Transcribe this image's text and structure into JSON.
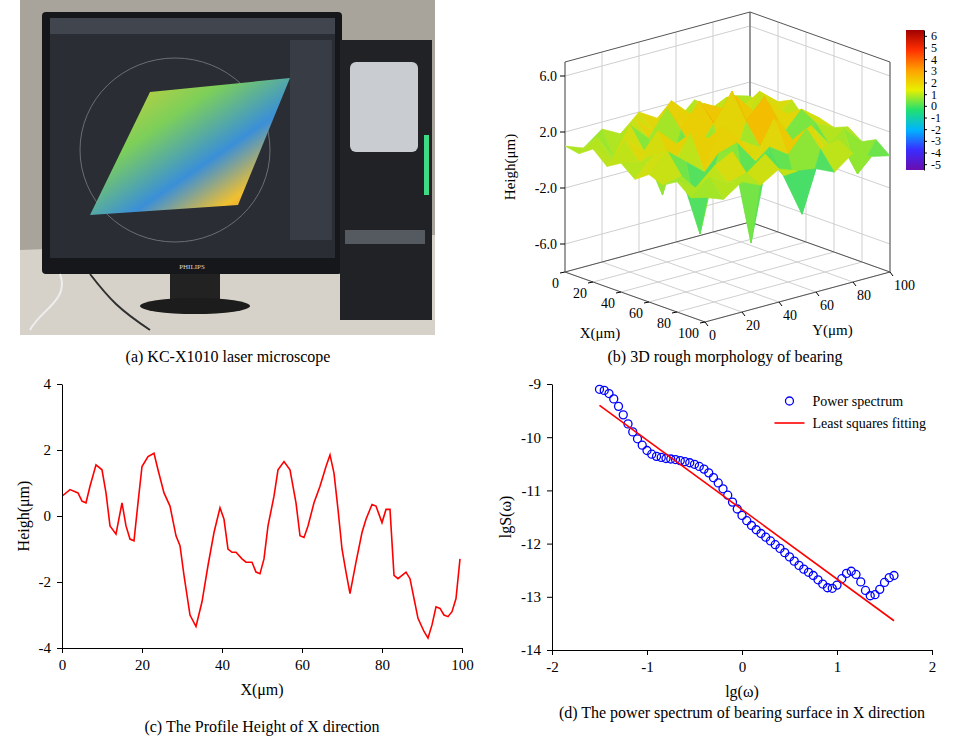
{
  "chart_data": [
    {
      "type": "image",
      "caption": "(a) KC-X1010 laser microscope",
      "monitor_label": "PHILIPS"
    },
    {
      "type": "surface3d",
      "caption": "(b) 3D rough morphology of bearing",
      "x_label": "X(μm)",
      "y_label": "Y(μm)",
      "z_label": "Heigh(μm)",
      "x": [
        0,
        10,
        20,
        30,
        40,
        50,
        60,
        70,
        80,
        90,
        100
      ],
      "y": [
        0,
        10,
        20,
        30,
        40,
        50,
        60,
        70,
        80,
        90,
        100
      ],
      "z": [
        [
          1.0,
          0.5,
          1.5,
          0.8,
          2.0,
          1.2,
          0.6,
          1.8,
          0.9,
          1.4,
          1.0
        ],
        [
          0.8,
          1.6,
          -0.5,
          2.2,
          1.0,
          2.8,
          1.5,
          0.4,
          2.0,
          1.1,
          0.6
        ],
        [
          1.5,
          0.3,
          2.5,
          1.2,
          3.0,
          0.8,
          2.6,
          1.9,
          0.2,
          2.4,
          1.3
        ],
        [
          0.6,
          2.1,
          1.0,
          -2.5,
          1.8,
          3.5,
          1.2,
          3.1,
          1.6,
          0.9,
          1.8
        ],
        [
          1.2,
          0.9,
          2.8,
          1.5,
          0.5,
          2.2,
          4.2,
          1.0,
          2.7,
          1.5,
          0.7
        ],
        [
          0.4,
          1.8,
          0.6,
          2.6,
          1.9,
          -1.5,
          2.4,
          3.8,
          0.8,
          2.2,
          1.2
        ],
        [
          1.1,
          2.4,
          1.3,
          0.2,
          3.2,
          1.7,
          0.9,
          2.5,
          -3.0,
          1.6,
          0.9
        ],
        [
          0.7,
          1.0,
          -3.5,
          1.9,
          2.3,
          0.6,
          3.3,
          1.4,
          2.1,
          0.4,
          1.3
        ],
        [
          1.3,
          0.5,
          1.7,
          2.4,
          -4.5,
          2.0,
          1.1,
          2.6,
          0.8,
          1.9,
          0.6
        ],
        [
          0.5,
          1.6,
          0.9,
          1.2,
          2.2,
          0.3,
          -2.8,
          1.5,
          1.8,
          -1.0,
          1.1
        ],
        [
          0.9,
          0.4,
          1.3,
          0.7,
          1.5,
          1.0,
          0.8,
          0.2,
          1.2,
          0.6,
          0.3
        ]
      ],
      "xlim": [
        0,
        100
      ],
      "ylim": [
        0,
        100
      ],
      "zlim": [
        -8,
        7
      ],
      "xticks": [
        0,
        20,
        40,
        60,
        80,
        100
      ],
      "yticks": [
        0,
        20,
        40,
        60,
        80,
        100
      ],
      "zticks": [
        {
          "value": -6,
          "label": "-6.0"
        },
        {
          "value": -2,
          "label": "-2.0"
        },
        {
          "value": 2,
          "label": "2.0"
        },
        {
          "value": 6,
          "label": "6.0"
        }
      ],
      "colorbar": {
        "range": [
          -5.5,
          6.5
        ],
        "ticks": [
          6,
          5,
          4,
          3,
          2,
          1,
          0,
          -1,
          -2,
          -3,
          -4,
          -5
        ]
      },
      "grid": true
    },
    {
      "type": "line",
      "caption": "(c) The Profile Height of X direction",
      "x_label": "X(μm)",
      "y_label": "Heigh(μm)",
      "color": "#ff0000",
      "x": [
        0,
        2,
        4,
        5,
        6,
        7,
        8.5,
        10,
        11,
        12,
        13.5,
        15,
        16,
        17,
        18,
        19,
        20,
        21.5,
        23,
        24,
        25.5,
        27,
        28.5,
        29.5,
        30.5,
        32,
        33.5,
        35,
        36.5,
        38,
        39.5,
        40.5,
        41.5,
        42.5,
        43.5,
        45,
        46,
        47.5,
        48.5,
        49.5,
        50.5,
        51.5,
        53,
        54,
        55.5,
        57,
        58.5,
        59.5,
        60.5,
        61.5,
        63,
        64.5,
        66,
        67,
        68,
        69,
        70,
        71,
        72,
        73.5,
        75,
        76,
        77.5,
        78.5,
        80,
        81,
        82,
        83,
        84,
        86,
        87,
        88,
        89,
        90.5,
        91.5,
        92.5,
        93.5,
        94.5,
        95.5,
        96.5,
        97.5,
        98.5,
        99.5
      ],
      "values": [
        0.6,
        0.8,
        0.7,
        0.45,
        0.4,
        0.9,
        1.55,
        1.4,
        0.7,
        -0.3,
        -0.55,
        0.4,
        -0.3,
        -0.7,
        -0.75,
        0.4,
        1.5,
        1.8,
        1.9,
        1.4,
        0.7,
        0.3,
        -0.6,
        -0.9,
        -1.8,
        -3.0,
        -3.35,
        -2.6,
        -1.5,
        -0.5,
        0.25,
        -0.1,
        -1.0,
        -1.1,
        -1.1,
        -1.3,
        -1.4,
        -1.4,
        -1.7,
        -1.75,
        -1.3,
        -0.3,
        0.6,
        1.4,
        1.65,
        1.4,
        0.4,
        -0.6,
        -0.65,
        -0.3,
        0.4,
        0.9,
        1.5,
        1.85,
        1.3,
        0.2,
        -1.0,
        -1.7,
        -2.35,
        -1.4,
        -0.5,
        -0.1,
        0.35,
        0.3,
        -0.2,
        0.2,
        0.2,
        -1.8,
        -1.9,
        -1.7,
        -1.9,
        -2.5,
        -3.1,
        -3.5,
        -3.7,
        -3.3,
        -2.75,
        -2.8,
        -3.0,
        -3.05,
        -2.9,
        -2.5,
        -1.3
      ],
      "xlim": [
        0,
        100
      ],
      "ylim": [
        -4,
        4
      ],
      "xticks": [
        0,
        20,
        40,
        60,
        80,
        100
      ],
      "yticks": [
        -4,
        -2,
        0,
        2,
        4
      ],
      "grid": false
    },
    {
      "type": "scatter",
      "caption": "(d) The power spectrum of bearing surface in X direction",
      "x_label": "lg(ω)",
      "y_label": "lgS(ω)",
      "series": [
        {
          "name": "Power spectrum",
          "type": "scatter",
          "color": "#0000ff",
          "marker": "circle",
          "x": [
            -1.5,
            -1.45,
            -1.4,
            -1.35,
            -1.3,
            -1.25,
            -1.2,
            -1.15,
            -1.1,
            -1.05,
            -1.0,
            -0.95,
            -0.9,
            -0.85,
            -0.8,
            -0.75,
            -0.7,
            -0.65,
            -0.6,
            -0.55,
            -0.5,
            -0.45,
            -0.4,
            -0.35,
            -0.3,
            -0.25,
            -0.2,
            -0.15,
            -0.1,
            -0.05,
            0,
            0.05,
            0.1,
            0.15,
            0.2,
            0.25,
            0.3,
            0.35,
            0.4,
            0.45,
            0.5,
            0.55,
            0.6,
            0.65,
            0.7,
            0.75,
            0.8,
            0.85,
            0.9,
            0.95,
            1.0,
            1.05,
            1.1,
            1.15,
            1.2,
            1.25,
            1.3,
            1.35,
            1.4,
            1.45,
            1.5,
            1.55,
            1.6
          ],
          "values": [
            -9.1,
            -9.12,
            -9.18,
            -9.28,
            -9.42,
            -9.58,
            -9.75,
            -9.9,
            -10.03,
            -10.15,
            -10.25,
            -10.32,
            -10.36,
            -10.38,
            -10.4,
            -10.41,
            -10.42,
            -10.44,
            -10.46,
            -10.48,
            -10.51,
            -10.55,
            -10.6,
            -10.67,
            -10.76,
            -10.86,
            -10.97,
            -11.09,
            -11.22,
            -11.35,
            -11.47,
            -11.57,
            -11.66,
            -11.74,
            -11.81,
            -11.88,
            -11.95,
            -12.02,
            -12.09,
            -12.17,
            -12.25,
            -12.33,
            -12.41,
            -12.48,
            -12.54,
            -12.6,
            -12.68,
            -12.76,
            -12.83,
            -12.84,
            -12.78,
            -12.66,
            -12.56,
            -12.52,
            -12.58,
            -12.72,
            -12.88,
            -12.98,
            -12.96,
            -12.86,
            -12.73,
            -12.64,
            -12.6
          ]
        },
        {
          "name": "Least squares fitting",
          "type": "line",
          "color": "#ff0000",
          "line_style": "solid",
          "x": [
            -1.5,
            1.6
          ],
          "values": [
            -9.4,
            -13.45
          ]
        }
      ],
      "legend": "upper right",
      "xlim": [
        -2,
        2
      ],
      "ylim": [
        -14,
        -9
      ],
      "xticks": [
        -2,
        -1,
        0,
        1,
        2
      ],
      "yticks": [
        -14,
        -13,
        -12,
        -11,
        -10,
        -9
      ],
      "grid": false
    }
  ]
}
